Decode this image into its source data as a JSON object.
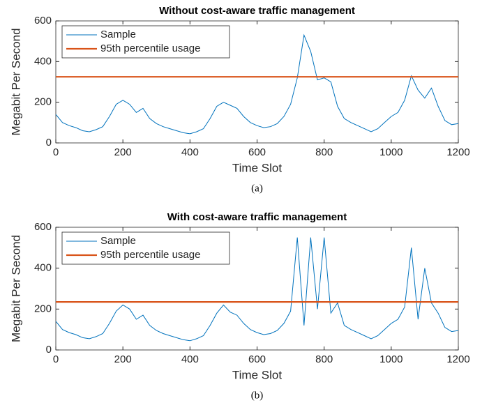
{
  "chart_data": [
    {
      "type": "line",
      "title": "Without cost-aware traffic management",
      "x_label": "Time Slot",
      "y_label": "Megabit Per Second",
      "caption": "(a)",
      "x": [
        0,
        20,
        40,
        60,
        80,
        100,
        120,
        140,
        160,
        180,
        200,
        220,
        240,
        260,
        280,
        300,
        320,
        340,
        360,
        380,
        400,
        420,
        440,
        460,
        480,
        500,
        520,
        540,
        560,
        580,
        600,
        620,
        640,
        660,
        680,
        700,
        720,
        740,
        760,
        780,
        800,
        820,
        840,
        860,
        880,
        900,
        920,
        940,
        960,
        980,
        1000,
        1020,
        1040,
        1060,
        1080,
        1100,
        1120,
        1140,
        1160,
        1180,
        1200
      ],
      "series": [
        {
          "name": "Sample",
          "color": "#0072bd",
          "values": [
            140,
            100,
            85,
            75,
            60,
            55,
            65,
            80,
            130,
            190,
            210,
            190,
            150,
            170,
            120,
            95,
            80,
            70,
            60,
            50,
            45,
            55,
            70,
            120,
            180,
            200,
            185,
            170,
            130,
            100,
            85,
            75,
            80,
            95,
            130,
            190,
            320,
            530,
            450,
            310,
            320,
            300,
            180,
            120,
            100,
            85,
            70,
            55,
            70,
            100,
            130,
            150,
            210,
            330,
            260,
            220,
            270,
            180,
            110,
            90,
            95
          ]
        },
        {
          "name": "95th percentile usage",
          "color": "#d95319",
          "x": [
            0,
            1200
          ],
          "values": [
            325,
            325
          ]
        }
      ],
      "xlim": [
        0,
        1200
      ],
      "ylim": [
        0,
        600
      ],
      "xticks": [
        0,
        200,
        400,
        600,
        800,
        1000,
        1200
      ],
      "yticks": [
        0,
        200,
        400,
        600
      ],
      "legend": "upper-left"
    },
    {
      "type": "line",
      "title": "With cost-aware traffic management",
      "x_label": "Time Slot",
      "y_label": "Megabit Per Second",
      "caption": "(b)",
      "x": [
        0,
        20,
        40,
        60,
        80,
        100,
        120,
        140,
        160,
        180,
        200,
        220,
        240,
        260,
        280,
        300,
        320,
        340,
        360,
        380,
        400,
        420,
        440,
        460,
        480,
        500,
        520,
        540,
        560,
        580,
        600,
        620,
        640,
        660,
        680,
        700,
        720,
        740,
        760,
        780,
        800,
        820,
        840,
        860,
        880,
        900,
        920,
        940,
        960,
        980,
        1000,
        1020,
        1040,
        1060,
        1080,
        1100,
        1120,
        1140,
        1160,
        1180,
        1200
      ],
      "series": [
        {
          "name": "Sample",
          "color": "#0072bd",
          "values": [
            140,
            100,
            85,
            75,
            60,
            55,
            65,
            80,
            130,
            190,
            220,
            200,
            150,
            170,
            120,
            95,
            80,
            70,
            60,
            50,
            45,
            55,
            70,
            120,
            180,
            220,
            185,
            170,
            130,
            100,
            85,
            75,
            80,
            95,
            130,
            190,
            550,
            120,
            550,
            200,
            550,
            180,
            230,
            120,
            100,
            85,
            70,
            55,
            70,
            100,
            130,
            150,
            210,
            500,
            150,
            400,
            230,
            180,
            110,
            90,
            95
          ]
        },
        {
          "name": "95th percentile usage",
          "color": "#d95319",
          "x": [
            0,
            1200
          ],
          "values": [
            235,
            235
          ]
        }
      ],
      "xlim": [
        0,
        1200
      ],
      "ylim": [
        0,
        600
      ],
      "xticks": [
        0,
        200,
        400,
        600,
        800,
        1000,
        1200
      ],
      "yticks": [
        0,
        200,
        400,
        600
      ],
      "legend": "upper-left"
    }
  ]
}
